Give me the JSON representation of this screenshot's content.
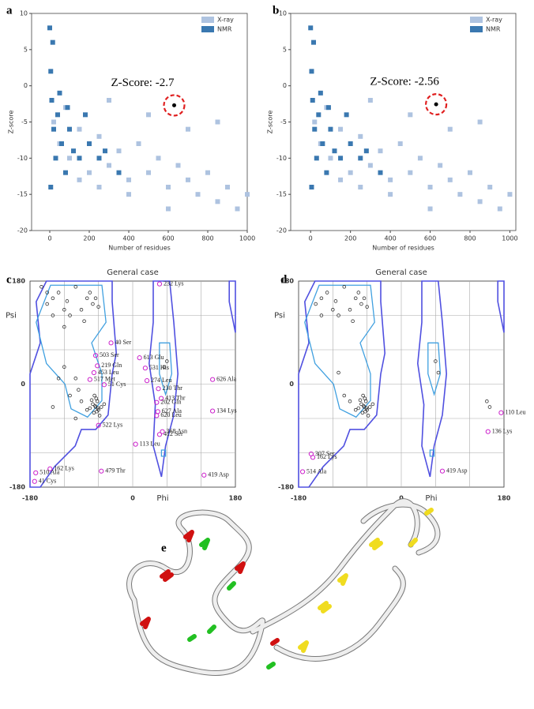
{
  "chart_data": [
    {
      "type": "scatter",
      "panel_label": "a",
      "xlabel": "Number of residues",
      "ylabel": "Z-score",
      "xlim": [
        -92,
        1000
      ],
      "ylim": [
        -20,
        10
      ],
      "xticks": [
        0,
        200,
        400,
        600,
        800,
        1000
      ],
      "yticks": [
        -20,
        -15,
        -10,
        -5,
        0,
        5,
        10
      ],
      "legend": "upper right",
      "series": [
        {
          "name": "X-ray",
          "color": "#aec3e0",
          "x": [
            20,
            50,
            80,
            100,
            150,
            200,
            250,
            300,
            350,
            400,
            450,
            500,
            550,
            600,
            650,
            700,
            750,
            800,
            850,
            900,
            950,
            1000,
            300,
            500,
            700,
            850,
            400,
            600,
            250,
            150
          ],
          "y": [
            -5,
            -8,
            -3,
            -10,
            -6,
            -12,
            -7,
            -11,
            -9,
            -13,
            -8,
            -12,
            -10,
            -14,
            -11,
            -13,
            -15,
            -12,
            -16,
            -14,
            -17,
            -15,
            -2,
            -4,
            -6,
            -5,
            -15,
            -17,
            -14,
            -13
          ]
        },
        {
          "name": "NMR",
          "color": "#3a78b0",
          "x": [
            0,
            5,
            10,
            20,
            30,
            40,
            60,
            80,
            100,
            120,
            150,
            180,
            200,
            250,
            280,
            350,
            5,
            15,
            50,
            90
          ],
          "y": [
            8,
            2,
            -2,
            -6,
            -10,
            -4,
            -8,
            -12,
            -6,
            -9,
            -10,
            -4,
            -8,
            -10,
            -9,
            -12,
            -14,
            6,
            -1,
            -3
          ]
        }
      ],
      "annotation": "Z-Score: -2.7",
      "highlight": {
        "x": 630,
        "y": -2.7
      }
    },
    {
      "type": "scatter",
      "panel_label": "b",
      "xlabel": "Number of residues",
      "ylabel": "Z-score",
      "xlim": [
        -100,
        1030
      ],
      "ylim": [
        -20,
        10
      ],
      "xticks": [
        0,
        200,
        400,
        600,
        800,
        1000
      ],
      "yticks": [
        -20,
        -15,
        -10,
        -5,
        0,
        5,
        10
      ],
      "legend": "upper right",
      "series": [
        {
          "name": "X-ray",
          "color": "#aec3e0",
          "x": [
            20,
            50,
            80,
            100,
            150,
            200,
            250,
            300,
            350,
            400,
            450,
            500,
            550,
            600,
            650,
            700,
            750,
            800,
            850,
            900,
            950,
            1000,
            300,
            500,
            700,
            850,
            400,
            600,
            250,
            150
          ],
          "y": [
            -5,
            -8,
            -3,
            -10,
            -6,
            -12,
            -7,
            -11,
            -9,
            -13,
            -8,
            -12,
            -10,
            -14,
            -11,
            -13,
            -15,
            -12,
            -16,
            -14,
            -17,
            -15,
            -2,
            -4,
            -6,
            -5,
            -15,
            -17,
            -14,
            -13
          ]
        },
        {
          "name": "NMR",
          "color": "#3a78b0",
          "x": [
            0,
            5,
            10,
            20,
            30,
            40,
            60,
            80,
            100,
            120,
            150,
            180,
            200,
            250,
            280,
            350,
            5,
            15,
            50,
            90
          ],
          "y": [
            8,
            2,
            -2,
            -6,
            -10,
            -4,
            -8,
            -12,
            -6,
            -9,
            -10,
            -4,
            -8,
            -10,
            -9,
            -12,
            -14,
            6,
            -1,
            -3
          ]
        }
      ],
      "annotation": "Z-Score: -2.56",
      "highlight": {
        "x": 630,
        "y": -2.56
      }
    },
    {
      "type": "ramachandran",
      "panel_label": "c",
      "title": "General case",
      "xlabel": "Phi",
      "ylabel": "Psi",
      "xlim": [
        -180,
        180
      ],
      "ylim": [
        -180,
        180
      ],
      "xticks": [
        -180,
        0,
        180
      ],
      "yticks": [
        -180,
        0,
        180
      ],
      "xgrid": [
        -120,
        -60,
        0,
        60,
        120
      ],
      "ygrid": [
        -120,
        -60,
        0,
        60,
        120
      ],
      "points": {
        "color": "#222222",
        "x": [
          -65,
          -60,
          -70,
          -62,
          -68,
          -55,
          -75,
          -64,
          -58,
          -72,
          -66,
          -61,
          -80,
          -50,
          -67,
          -63,
          -90,
          -95,
          -100,
          -120,
          -140,
          -80,
          -70,
          -130,
          -150,
          -110,
          -90,
          -60,
          -75,
          -100,
          -160,
          -140,
          -120,
          -85,
          -65,
          -115,
          -150,
          -120,
          -110,
          -130,
          -100,
          -140,
          60,
          55
        ],
        "y": [
          -40,
          -45,
          -35,
          -30,
          -50,
          -40,
          -42,
          -25,
          -55,
          -28,
          -38,
          -42,
          -45,
          -35,
          -20,
          -48,
          -30,
          -10,
          10,
          130,
          150,
          150,
          140,
          160,
          140,
          120,
          130,
          135,
          160,
          170,
          170,
          120,
          100,
          110,
          150,
          145,
          160,
          30,
          -20,
          10,
          -60,
          -40,
          40,
          30
        ]
      },
      "outliers": {
        "color": "#cc22cc",
        "x": [
          47,
          -38,
          12,
          -65,
          -62,
          22,
          -68,
          -75,
          25,
          -50,
          140,
          45,
          50,
          42,
          140,
          44,
          42,
          -60,
          52,
          47,
          5,
          -145,
          -170,
          -55,
          -172,
          125
        ],
        "y": [
          175,
          72,
          46,
          50,
          32,
          28,
          20,
          8,
          6,
          -1,
          8,
          -8,
          -25,
          -32,
          -47,
          -48,
          -55,
          -72,
          -83,
          -88,
          -105,
          -148,
          -155,
          -152,
          -170,
          -159
        ],
        "labels": [
          "232 Lys",
          "40 Ser",
          "613 Glu",
          "503 Ser",
          "219 Gln",
          "531 His",
          "453 Leu",
          "517 Met",
          "274 Leu",
          "51 Cys",
          "626 Ala",
          "230 Thr",
          "413 Thr",
          "202 Gln",
          "134 Lys",
          "627 Ala",
          "620 Leu",
          "522 Lys",
          "368 Asn",
          "412 Ser",
          "113 Leu",
          "162 Lys",
          "510 Ala",
          "479 Thr",
          "41 Cys",
          "419 Asp"
        ]
      }
    },
    {
      "type": "ramachandran",
      "panel_label": "d",
      "title": "General case",
      "xlabel": "Phi",
      "ylabel": "Psi",
      "xlim": [
        -180,
        180
      ],
      "ylim": [
        -180,
        180
      ],
      "xticks": [
        -180,
        0,
        180
      ],
      "yticks": [
        -180,
        0,
        180
      ],
      "xgrid": [
        -120,
        -60,
        0,
        60,
        120
      ],
      "ygrid": [
        -120,
        -60,
        0,
        60,
        120
      ],
      "points": {
        "color": "#222222",
        "x": [
          -65,
          -60,
          -70,
          -62,
          -68,
          -55,
          -75,
          -64,
          -58,
          -72,
          -66,
          -61,
          -80,
          -50,
          -67,
          -63,
          -90,
          -120,
          -140,
          -80,
          -70,
          -130,
          -150,
          -110,
          -90,
          -60,
          -75,
          -100,
          -140,
          -85,
          -65,
          -115,
          60,
          65,
          150,
          155,
          -110,
          -100
        ],
        "y": [
          -40,
          -45,
          -35,
          -30,
          -50,
          -40,
          -42,
          -25,
          -55,
          -28,
          -38,
          -42,
          -45,
          -35,
          -20,
          -48,
          -30,
          130,
          150,
          150,
          140,
          160,
          140,
          120,
          130,
          135,
          160,
          170,
          120,
          110,
          150,
          145,
          40,
          20,
          -30,
          -40,
          20,
          -20
        ]
      },
      "outliers": {
        "color": "#cc22cc",
        "x": [
          175,
          152,
          72,
          -173,
          -158,
          -155
        ],
        "y": [
          -50,
          -83,
          -152,
          -153,
          -122,
          -128
        ],
        "labels": [
          "110 Leu",
          "136 Lys",
          "419 Asp",
          "514 Ala",
          "307 Ser",
          "162 Lys"
        ]
      }
    }
  ],
  "structure": {
    "panel_label": "e"
  }
}
